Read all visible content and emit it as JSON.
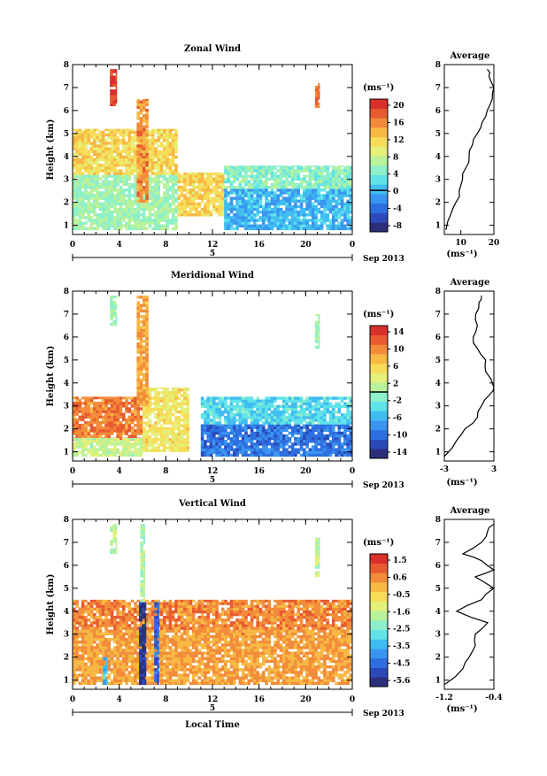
{
  "xlabel": "Local Time",
  "colorbar_unit": "(ms⁻¹)",
  "date_axis": {
    "day_label": "5",
    "month_label": "Sep 2013"
  },
  "colors": {
    "colormap": [
      "#2b2f7a",
      "#2c49b8",
      "#2d6fe0",
      "#3a95f0",
      "#40bdf0",
      "#5fe3e8",
      "#8ef0c8",
      "#b9f29a",
      "#e3f07a",
      "#f7dc58",
      "#f7b844",
      "#f28c3a",
      "#e85a30",
      "#d8302a"
    ],
    "profile_line": "#000000"
  },
  "chart_data": [
    {
      "type": "heatmap",
      "title": "Zonal Wind",
      "ylabel": "Height (km)",
      "x_ticks": [
        "0",
        "4",
        "8",
        "12",
        "16",
        "20",
        "0"
      ],
      "xlim": [
        0,
        24
      ],
      "y_ticks": [
        "1",
        "2",
        "3",
        "4",
        "5",
        "6",
        "7",
        "8"
      ],
      "ylim": [
        0.6,
        8
      ],
      "colorbar": {
        "ticks": [
          "20",
          "16",
          "12",
          "8",
          "4",
          "0",
          "-4",
          "-8"
        ],
        "range": [
          -10,
          22
        ],
        "zero_line": 0
      },
      "regimes": [
        {
          "t": [
            0,
            9
          ],
          "h": [
            0.8,
            3.2
          ],
          "value": 6
        },
        {
          "t": [
            0,
            9
          ],
          "h": [
            3.2,
            5.2
          ],
          "value": 12
        },
        {
          "t": [
            9,
            13
          ],
          "h": [
            1.4,
            3.3
          ],
          "value": 12
        },
        {
          "t": [
            13,
            24
          ],
          "h": [
            0.8,
            2.6
          ],
          "value": 0
        },
        {
          "t": [
            13,
            24
          ],
          "h": [
            2.6,
            3.6
          ],
          "value": 5
        },
        {
          "t": [
            3.2,
            3.8
          ],
          "h": [
            6.2,
            7.8
          ],
          "value": 20
        },
        {
          "t": [
            5.5,
            6.5
          ],
          "h": [
            2.0,
            6.5
          ],
          "value": 16
        },
        {
          "t": [
            20.8,
            21.2
          ],
          "h": [
            6.0,
            7.2
          ],
          "value": 17
        }
      ],
      "average_profile": {
        "title": "Average",
        "xlabel": "(ms⁻¹)",
        "x_ticks": [
          "10",
          "20"
        ],
        "xlim": [
          5,
          20
        ],
        "height": [
          0.8,
          1.5,
          2.0,
          2.5,
          3.0,
          3.5,
          4.0,
          4.5,
          5.0,
          5.5,
          6.0,
          6.5,
          7.0,
          7.5,
          7.8
        ],
        "value": [
          5.5,
          7.0,
          8.5,
          9.5,
          10.5,
          11.5,
          12.5,
          13.5,
          15.0,
          16.5,
          18.0,
          19.5,
          20.0,
          18.5,
          18.0
        ]
      }
    },
    {
      "type": "heatmap",
      "title": "Meridional Wind",
      "ylabel": "Height (km)",
      "x_ticks": [
        "0",
        "4",
        "8",
        "12",
        "16",
        "20",
        "0"
      ],
      "xlim": [
        0,
        24
      ],
      "y_ticks": [
        "1",
        "2",
        "3",
        "4",
        "5",
        "6",
        "7",
        "8"
      ],
      "ylim": [
        0.6,
        8
      ],
      "colorbar": {
        "ticks": [
          "14",
          "10",
          "6",
          "2",
          "-2",
          "-6",
          "-10",
          "-14"
        ],
        "range": [
          -16,
          16
        ],
        "zero_line": 0
      },
      "regimes": [
        {
          "t": [
            0,
            6
          ],
          "h": [
            1.5,
            3.4
          ],
          "value": 11
        },
        {
          "t": [
            0,
            6
          ],
          "h": [
            0.8,
            1.6
          ],
          "value": 2
        },
        {
          "t": [
            6,
            10
          ],
          "h": [
            1.0,
            3.8
          ],
          "value": 5
        },
        {
          "t": [
            11,
            24
          ],
          "h": [
            0.8,
            2.2
          ],
          "value": -10
        },
        {
          "t": [
            11,
            24
          ],
          "h": [
            2.2,
            3.4
          ],
          "value": -4
        },
        {
          "t": [
            5.5,
            6.5
          ],
          "h": [
            3.0,
            7.8
          ],
          "value": 9
        },
        {
          "t": [
            3.2,
            3.8
          ],
          "h": [
            6.5,
            7.8
          ],
          "value": 0
        },
        {
          "t": [
            20.8,
            21.2
          ],
          "h": [
            5.5,
            7.0
          ],
          "value": 0
        }
      ],
      "average_profile": {
        "title": "Average",
        "xlabel": "(ms⁻¹)",
        "x_ticks": [
          "-3",
          "3"
        ],
        "xlim": [
          -3,
          3
        ],
        "height": [
          0.8,
          1.5,
          2.0,
          2.5,
          3.0,
          3.5,
          3.8,
          4.5,
          5.0,
          5.5,
          6.0,
          6.5,
          7.0,
          7.5,
          7.8
        ],
        "value": [
          -3.0,
          -1.5,
          -0.5,
          1.0,
          1.5,
          2.5,
          3.0,
          2.0,
          2.0,
          1.0,
          0.5,
          1.0,
          0.8,
          1.2,
          1.5
        ]
      }
    },
    {
      "type": "heatmap",
      "title": "Vertical Wind",
      "ylabel": "Height (km)",
      "x_ticks": [
        "0",
        "4",
        "8",
        "12",
        "16",
        "20",
        "0"
      ],
      "xlim": [
        0,
        24
      ],
      "y_ticks": [
        "1",
        "2",
        "3",
        "4",
        "5",
        "6",
        "7",
        "8"
      ],
      "ylim": [
        0.6,
        8
      ],
      "colorbar": {
        "ticks": [
          "1.5",
          "0.6",
          "-0.5",
          "-1.6",
          "-2.5",
          "-3.5",
          "-4.5",
          "-5.6"
        ],
        "range": [
          -6.0,
          2.0
        ],
        "zero_line": null
      },
      "regimes": [
        {
          "t": [
            0,
            24
          ],
          "h": [
            0.8,
            3.2
          ],
          "value": 0.3
        },
        {
          "t": [
            0,
            24
          ],
          "h": [
            3.2,
            4.5
          ],
          "value": 0.6
        },
        {
          "t": [
            5.7,
            6.3
          ],
          "h": [
            0.8,
            4.4
          ],
          "value": -5.6
        },
        {
          "t": [
            7.0,
            7.4
          ],
          "h": [
            0.8,
            4.4
          ],
          "value": -4.8
        },
        {
          "t": [
            2.6,
            3.0
          ],
          "h": [
            0.8,
            2.0
          ],
          "value": -3.5
        },
        {
          "t": [
            5.8,
            6.2
          ],
          "h": [
            4.4,
            7.8
          ],
          "value": -1.8
        },
        {
          "t": [
            3.2,
            3.8
          ],
          "h": [
            6.5,
            7.8
          ],
          "value": -1.6
        },
        {
          "t": [
            20.8,
            21.2
          ],
          "h": [
            5.5,
            7.2
          ],
          "value": -1.6
        }
      ],
      "average_profile": {
        "title": "Average",
        "xlabel": "(ms⁻¹)",
        "x_ticks": [
          "-1.2",
          "-0.4"
        ],
        "xlim": [
          -1.2,
          -0.4
        ],
        "height": [
          0.8,
          1.5,
          2.0,
          2.5,
          3.0,
          3.5,
          4.0,
          4.5,
          5.0,
          5.5,
          5.8,
          6.2,
          6.5,
          7.0,
          7.5,
          7.8
        ],
        "value": [
          -1.2,
          -0.9,
          -0.8,
          -0.7,
          -0.7,
          -0.5,
          -1.0,
          -0.6,
          -0.4,
          -0.7,
          -0.4,
          -0.6,
          -0.9,
          -0.6,
          -0.5,
          -0.4
        ]
      }
    }
  ]
}
